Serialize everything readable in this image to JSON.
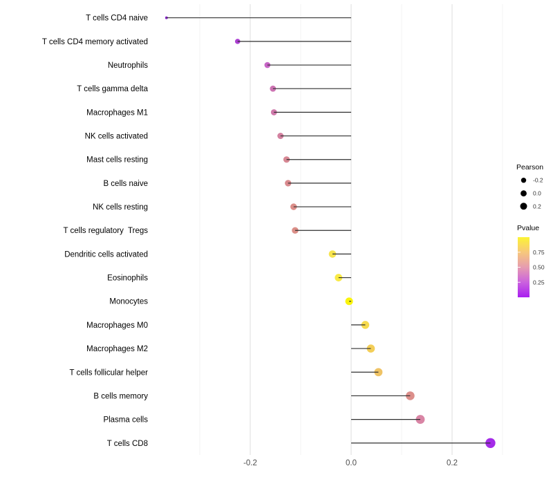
{
  "chart_data": {
    "type": "lollipop",
    "title": "",
    "xlabel": "",
    "ylabel": "",
    "orientation": "horizontal",
    "grid": "vertical-only",
    "xlim": [
      -0.4,
      0.31
    ],
    "x_ticks": [
      -0.2,
      0.0,
      0.2
    ],
    "x_tick_labels": [
      "-0.2",
      "0.0",
      "0.2"
    ],
    "x_minor_ticks": [
      -0.3,
      -0.1,
      0.1,
      0.3
    ],
    "stem_color": "#2f2f2f",
    "background": "#ffffff",
    "gridline_major_color": "#e3e3e3",
    "gridline_minor_color": "#f0f0f0",
    "categories": [
      "T cells CD4 naive",
      "T cells CD4 memory activated",
      "Neutrophils",
      "T cells gamma delta",
      "Macrophages M1",
      "NK cells activated",
      "Mast cells resting",
      "B cells naive",
      "NK cells resting",
      "T cells regulatory  Tregs",
      "Dendritic cells activated",
      "Eosinophils",
      "Monocytes",
      "Macrophages M0",
      "Macrophages M2",
      "T cells follicular helper",
      "B cells memory",
      "Plasma cells",
      "T cells CD8"
    ],
    "values": [
      -0.366,
      -0.225,
      -0.166,
      -0.155,
      -0.153,
      -0.14,
      -0.128,
      -0.125,
      -0.114,
      -0.111,
      -0.037,
      -0.025,
      -0.004,
      0.028,
      0.039,
      0.054,
      0.117,
      0.137,
      0.276
    ],
    "point_colors": [
      "#8A28CC",
      "#AC40D2",
      "#C765C6",
      "#CC73B2",
      "#CF79AA",
      "#D381A0",
      "#D78894",
      "#D98A8E",
      "#DB8E89",
      "#DB8F88",
      "#F7E44E",
      "#F9EA45",
      "#FAF40C",
      "#F6DA4E",
      "#F3CE58",
      "#EFC365",
      "#DC8F8B",
      "#D985A5",
      "#A42BE8"
    ],
    "legend": {
      "size": {
        "title": "Pearson",
        "dot_color": "#000000",
        "items": [
          {
            "label": "-0.2",
            "value": -0.2,
            "radius_px": 3.7
          },
          {
            "label": "0.0",
            "value": 0.0,
            "radius_px": 4.4
          },
          {
            "label": "0.2",
            "value": 0.2,
            "radius_px": 5.0
          }
        ]
      },
      "color": {
        "title": "Pvalue",
        "ticks": [
          {
            "label": "0.75",
            "value": 0.75
          },
          {
            "label": "0.50",
            "value": 0.5
          },
          {
            "label": "0.25",
            "value": 0.25
          }
        ],
        "gradient_top_to_bottom": [
          "#FCF434",
          "#F7C77C",
          "#E69CB0",
          "#CB62DE",
          "#A81EF0"
        ]
      }
    }
  }
}
